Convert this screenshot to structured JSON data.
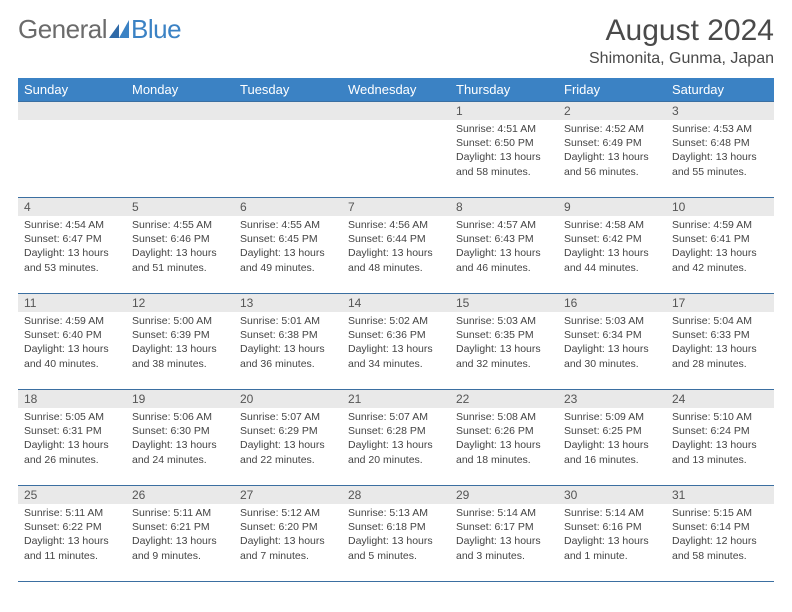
{
  "logo": {
    "part1": "General",
    "part2": "Blue"
  },
  "title": "August 2024",
  "location": "Shimonita, Gunma, Japan",
  "colors": {
    "header_bg": "#3b82c4",
    "header_fg": "#ffffff",
    "daynum_bg": "#e9e9e9",
    "rule": "#3b6fa1",
    "text": "#444444",
    "logo_gray": "#6b6b6b",
    "logo_blue": "#3b82c4",
    "page_bg": "#ffffff"
  },
  "fonts": {
    "title_pt": 30,
    "location_pt": 16,
    "dayhdr_pt": 13,
    "body_pt": 10.5
  },
  "day_headers": [
    "Sunday",
    "Monday",
    "Tuesday",
    "Wednesday",
    "Thursday",
    "Friday",
    "Saturday"
  ],
  "layout": {
    "first_weekday_index": 4,
    "days_in_month": 31,
    "weeks": 5
  },
  "days": {
    "1": {
      "sunrise": "4:51 AM",
      "sunset": "6:50 PM",
      "daylight": "13 hours and 58 minutes."
    },
    "2": {
      "sunrise": "4:52 AM",
      "sunset": "6:49 PM",
      "daylight": "13 hours and 56 minutes."
    },
    "3": {
      "sunrise": "4:53 AM",
      "sunset": "6:48 PM",
      "daylight": "13 hours and 55 minutes."
    },
    "4": {
      "sunrise": "4:54 AM",
      "sunset": "6:47 PM",
      "daylight": "13 hours and 53 minutes."
    },
    "5": {
      "sunrise": "4:55 AM",
      "sunset": "6:46 PM",
      "daylight": "13 hours and 51 minutes."
    },
    "6": {
      "sunrise": "4:55 AM",
      "sunset": "6:45 PM",
      "daylight": "13 hours and 49 minutes."
    },
    "7": {
      "sunrise": "4:56 AM",
      "sunset": "6:44 PM",
      "daylight": "13 hours and 48 minutes."
    },
    "8": {
      "sunrise": "4:57 AM",
      "sunset": "6:43 PM",
      "daylight": "13 hours and 46 minutes."
    },
    "9": {
      "sunrise": "4:58 AM",
      "sunset": "6:42 PM",
      "daylight": "13 hours and 44 minutes."
    },
    "10": {
      "sunrise": "4:59 AM",
      "sunset": "6:41 PM",
      "daylight": "13 hours and 42 minutes."
    },
    "11": {
      "sunrise": "4:59 AM",
      "sunset": "6:40 PM",
      "daylight": "13 hours and 40 minutes."
    },
    "12": {
      "sunrise": "5:00 AM",
      "sunset": "6:39 PM",
      "daylight": "13 hours and 38 minutes."
    },
    "13": {
      "sunrise": "5:01 AM",
      "sunset": "6:38 PM",
      "daylight": "13 hours and 36 minutes."
    },
    "14": {
      "sunrise": "5:02 AM",
      "sunset": "6:36 PM",
      "daylight": "13 hours and 34 minutes."
    },
    "15": {
      "sunrise": "5:03 AM",
      "sunset": "6:35 PM",
      "daylight": "13 hours and 32 minutes."
    },
    "16": {
      "sunrise": "5:03 AM",
      "sunset": "6:34 PM",
      "daylight": "13 hours and 30 minutes."
    },
    "17": {
      "sunrise": "5:04 AM",
      "sunset": "6:33 PM",
      "daylight": "13 hours and 28 minutes."
    },
    "18": {
      "sunrise": "5:05 AM",
      "sunset": "6:31 PM",
      "daylight": "13 hours and 26 minutes."
    },
    "19": {
      "sunrise": "5:06 AM",
      "sunset": "6:30 PM",
      "daylight": "13 hours and 24 minutes."
    },
    "20": {
      "sunrise": "5:07 AM",
      "sunset": "6:29 PM",
      "daylight": "13 hours and 22 minutes."
    },
    "21": {
      "sunrise": "5:07 AM",
      "sunset": "6:28 PM",
      "daylight": "13 hours and 20 minutes."
    },
    "22": {
      "sunrise": "5:08 AM",
      "sunset": "6:26 PM",
      "daylight": "13 hours and 18 minutes."
    },
    "23": {
      "sunrise": "5:09 AM",
      "sunset": "6:25 PM",
      "daylight": "13 hours and 16 minutes."
    },
    "24": {
      "sunrise": "5:10 AM",
      "sunset": "6:24 PM",
      "daylight": "13 hours and 13 minutes."
    },
    "25": {
      "sunrise": "5:11 AM",
      "sunset": "6:22 PM",
      "daylight": "13 hours and 11 minutes."
    },
    "26": {
      "sunrise": "5:11 AM",
      "sunset": "6:21 PM",
      "daylight": "13 hours and 9 minutes."
    },
    "27": {
      "sunrise": "5:12 AM",
      "sunset": "6:20 PM",
      "daylight": "13 hours and 7 minutes."
    },
    "28": {
      "sunrise": "5:13 AM",
      "sunset": "6:18 PM",
      "daylight": "13 hours and 5 minutes."
    },
    "29": {
      "sunrise": "5:14 AM",
      "sunset": "6:17 PM",
      "daylight": "13 hours and 3 minutes."
    },
    "30": {
      "sunrise": "5:14 AM",
      "sunset": "6:16 PM",
      "daylight": "13 hours and 1 minute."
    },
    "31": {
      "sunrise": "5:15 AM",
      "sunset": "6:14 PM",
      "daylight": "12 hours and 58 minutes."
    }
  },
  "labels": {
    "sunrise": "Sunrise: ",
    "sunset": "Sunset: ",
    "daylight": "Daylight: "
  }
}
